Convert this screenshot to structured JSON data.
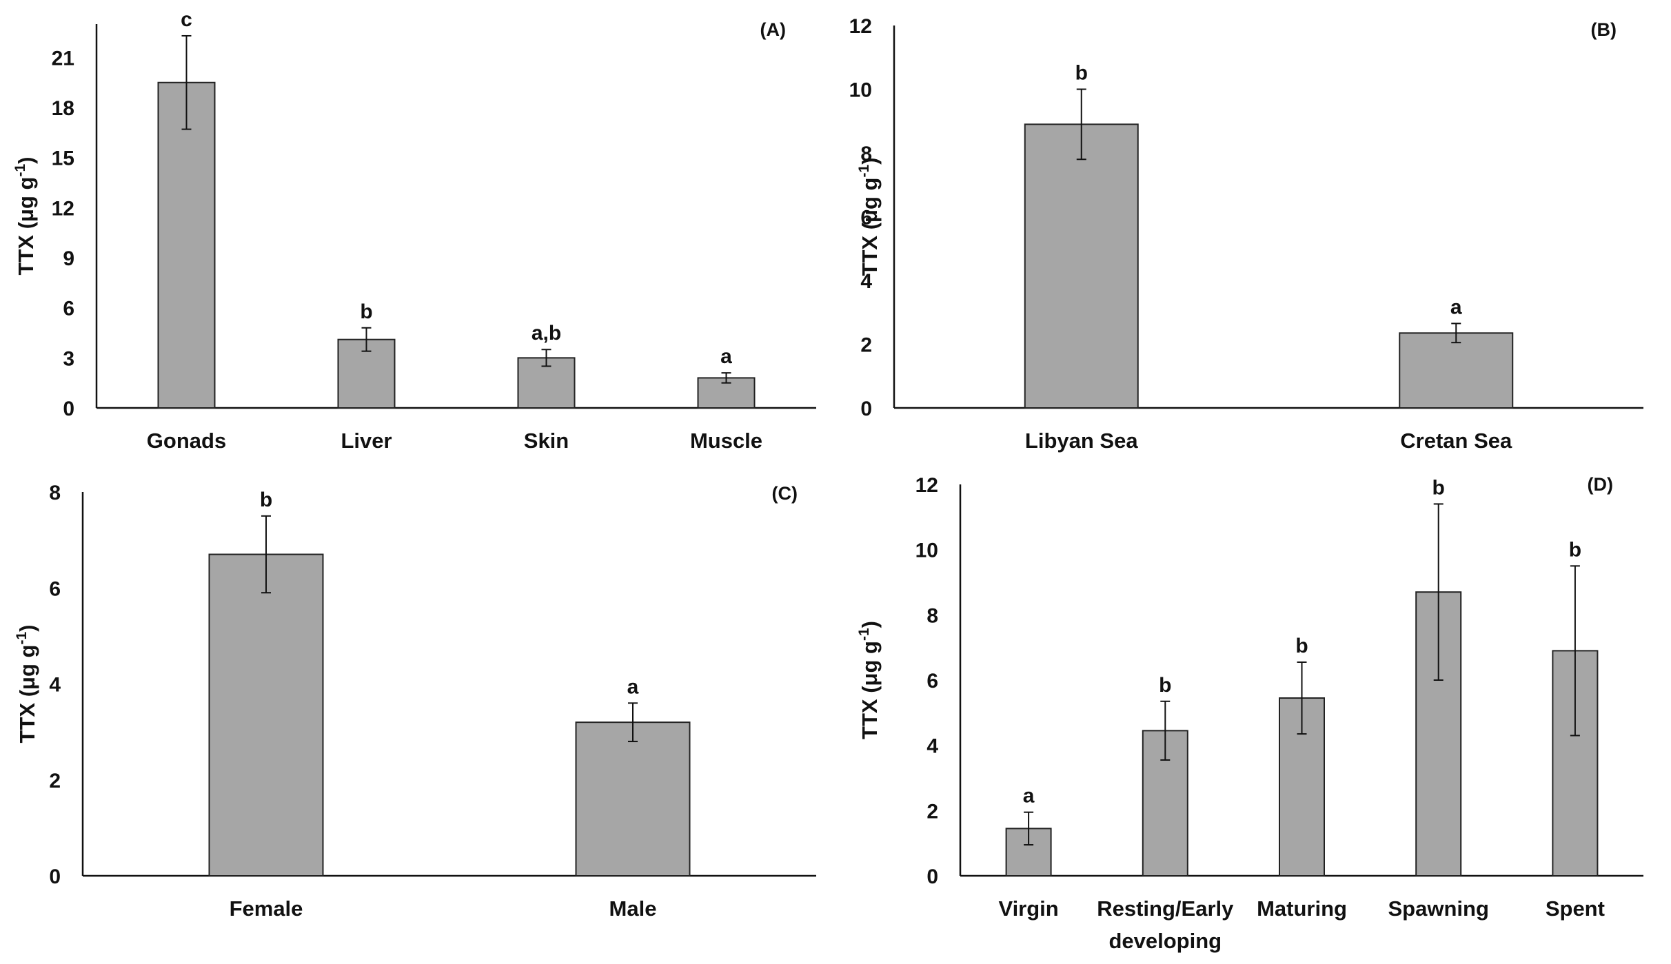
{
  "chart_data": [
    {
      "type": "bar",
      "panel_label": "(A)",
      "ylabel": "TTX (μg g",
      "ylabel_superscript": "-1",
      "ylabel_close": ")",
      "categories": [
        "Gonads",
        "Liver",
        "Skin",
        "Muscle"
      ],
      "values": [
        19.5,
        4.1,
        3.0,
        1.8
      ],
      "errors": [
        2.8,
        0.7,
        0.5,
        0.3
      ],
      "significance": [
        "c",
        "b",
        "a,b",
        "a"
      ],
      "ylim": [
        0,
        23
      ],
      "yticks": [
        0,
        3,
        6,
        9,
        12,
        15,
        18,
        21
      ],
      "bar_color": "#a6a6a6"
    },
    {
      "type": "bar",
      "panel_label": "(B)",
      "ylabel": "TTX (μg g",
      "ylabel_superscript": "-1",
      "ylabel_close": ")",
      "categories": [
        "Libyan Sea",
        "Cretan Sea"
      ],
      "values": [
        8.9,
        2.35
      ],
      "errors": [
        1.1,
        0.3
      ],
      "significance": [
        "b",
        "a"
      ],
      "ylim": [
        0,
        12
      ],
      "yticks": [
        0,
        2,
        4,
        6,
        8,
        10,
        12
      ],
      "bar_color": "#a6a6a6"
    },
    {
      "type": "bar",
      "panel_label": "(C)",
      "ylabel": "TTX (μg g",
      "ylabel_superscript": "-1",
      "ylabel_close": ")",
      "categories": [
        "Female",
        "Male"
      ],
      "values": [
        6.7,
        3.2
      ],
      "errors": [
        0.8,
        0.4
      ],
      "significance": [
        "b",
        "a"
      ],
      "ylim": [
        0,
        8
      ],
      "yticks": [
        0,
        2,
        4,
        6,
        8
      ],
      "bar_color": "#a6a6a6"
    },
    {
      "type": "bar",
      "panel_label": "(D)",
      "ylabel": "TTX (μg g",
      "ylabel_superscript": "-1",
      "ylabel_close": ")",
      "categories": [
        [
          "Virgin"
        ],
        [
          "Resting/Early",
          "developing"
        ],
        [
          "Maturing"
        ],
        [
          "Spawning"
        ],
        [
          "Spent"
        ]
      ],
      "values": [
        1.45,
        4.45,
        5.45,
        8.7,
        6.9
      ],
      "errors": [
        0.5,
        0.9,
        1.1,
        2.7,
        2.6
      ],
      "significance": [
        "a",
        "b",
        "b",
        "b",
        "b"
      ],
      "ylim": [
        0,
        12
      ],
      "yticks": [
        0,
        2,
        4,
        6,
        8,
        10,
        12
      ],
      "bar_color": "#a6a6a6"
    }
  ]
}
